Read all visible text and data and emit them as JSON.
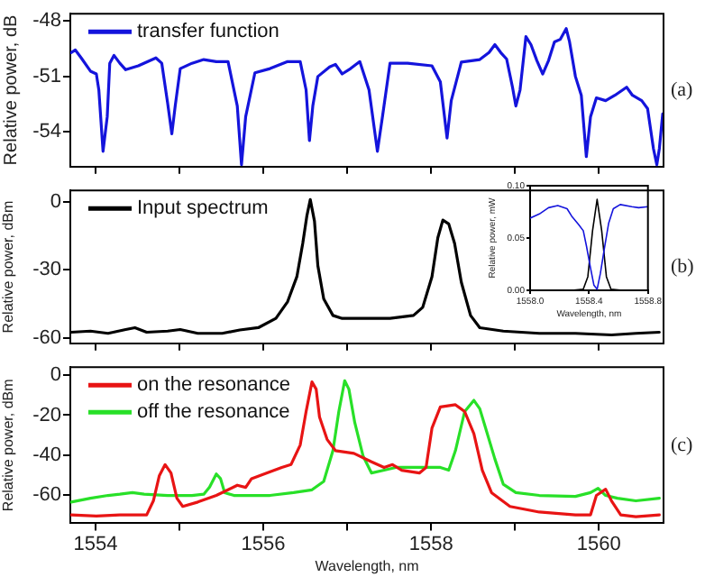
{
  "chart_data": [
    {
      "type": "line",
      "ylabel": "Relative power, dB",
      "annotations": [
        "(a)"
      ],
      "xlim": [
        1553.7,
        1560.77
      ],
      "ylim": [
        -55.9,
        -47.6
      ],
      "yticks": [
        -54,
        -51,
        -48
      ],
      "xticks": [
        1554,
        {
          "value": 1555,
          "label": null
        },
        1556,
        {
          "value": 1557,
          "label": null
        },
        1558,
        {
          "value": 1559,
          "label": null
        },
        1560
      ],
      "tick_labels": "y",
      "grid": false,
      "legend": "top left",
      "marker": "none",
      "line_style": "solid",
      "series": [
        {
          "name": "transfer function",
          "color": "#1414dc",
          "x": [
            1553.71,
            1553.76,
            1553.83,
            1553.94,
            1554.01,
            1554.04,
            1554.09,
            1554.14,
            1554.17,
            1554.22,
            1554.29,
            1554.36,
            1554.51,
            1554.72,
            1554.79,
            1554.86,
            1554.91,
            1554.95,
            1555.01,
            1555.15,
            1555.29,
            1555.44,
            1555.58,
            1555.69,
            1555.74,
            1555.79,
            1555.9,
            1556.08,
            1556.29,
            1556.44,
            1556.51,
            1556.55,
            1556.59,
            1556.65,
            1556.79,
            1556.86,
            1556.94,
            1557.04,
            1557.15,
            1557.26,
            1557.36,
            1557.42,
            1557.51,
            1557.72,
            1558.01,
            1558.11,
            1558.19,
            1558.24,
            1558.36,
            1558.58,
            1558.69,
            1558.76,
            1558.83,
            1558.9,
            1558.97,
            1559.01,
            1559.06,
            1559.13,
            1559.19,
            1559.26,
            1559.33,
            1559.4,
            1559.47,
            1559.54,
            1559.61,
            1559.65,
            1559.72,
            1559.79,
            1559.85,
            1559.9,
            1559.97,
            1560.08,
            1560.19,
            1560.33,
            1560.4,
            1560.51,
            1560.58,
            1560.65,
            1560.69,
            1560.72,
            1560.76
          ],
          "values": [
            -49.71,
            -49.57,
            -50.0,
            -50.72,
            -50.87,
            -51.74,
            -55.07,
            -53.19,
            -50.29,
            -49.86,
            -50.29,
            -50.64,
            -50.43,
            -50.0,
            -50.29,
            -52.46,
            -54.12,
            -52.61,
            -50.58,
            -50.29,
            -50.09,
            -50.2,
            -50.2,
            -52.61,
            -55.8,
            -53.19,
            -50.81,
            -50.58,
            -50.2,
            -50.2,
            -51.74,
            -54.49,
            -52.61,
            -51.01,
            -50.49,
            -50.35,
            -50.87,
            -50.58,
            -50.2,
            -51.74,
            -55.07,
            -53.19,
            -50.29,
            -50.29,
            -50.43,
            -51.3,
            -54.35,
            -52.32,
            -50.23,
            -50.09,
            -49.71,
            -49.28,
            -49.71,
            -50.06,
            -51.59,
            -52.61,
            -51.74,
            -48.84,
            -49.28,
            -50.14,
            -50.87,
            -50.14,
            -49.13,
            -48.99,
            -48.41,
            -49.13,
            -51.01,
            -52.03,
            -55.36,
            -53.19,
            -52.17,
            -52.32,
            -52.03,
            -51.59,
            -52.03,
            -52.32,
            -52.75,
            -54.93,
            -55.8,
            -54.93,
            -53.04
          ]
        }
      ]
    },
    {
      "type": "line",
      "ylabel": "Relative power, dBm",
      "annotations": [
        "(b)"
      ],
      "xlim": [
        1553.7,
        1560.77
      ],
      "ylim": [
        -62.5,
        5
      ],
      "yticks": [
        -60,
        -30,
        0
      ],
      "xticks": [
        1554,
        {
          "value": 1555,
          "label": null
        },
        1556,
        {
          "value": 1557,
          "label": null
        },
        1558,
        {
          "value": 1559,
          "label": null
        },
        1560
      ],
      "tick_labels": "y",
      "grid": false,
      "legend": "top left",
      "marker": "none",
      "line_style": "solid",
      "series": [
        {
          "name": "Input spectrum",
          "color": "#000000",
          "x": [
            1553.71,
            1553.94,
            1554.15,
            1554.36,
            1554.47,
            1554.61,
            1554.86,
            1555.01,
            1555.22,
            1555.51,
            1555.72,
            1555.94,
            1556.15,
            1556.29,
            1556.4,
            1556.47,
            1556.52,
            1556.56,
            1556.61,
            1556.65,
            1556.72,
            1556.83,
            1556.94,
            1557.15,
            1557.51,
            1557.79,
            1557.9,
            1558.01,
            1558.08,
            1558.14,
            1558.21,
            1558.28,
            1558.36,
            1558.47,
            1558.58,
            1558.86,
            1559.29,
            1559.72,
            1560.15,
            1560.44,
            1560.72
          ],
          "values": [
            -57.6,
            -57.1,
            -58.1,
            -56.4,
            -55.6,
            -57.6,
            -57.1,
            -56.4,
            -58.1,
            -58.1,
            -56.6,
            -55.6,
            -51.5,
            -44.1,
            -33.1,
            -18.4,
            -6.1,
            1.0,
            -8.6,
            -28.2,
            -42.9,
            -50.2,
            -51.5,
            -51.5,
            -51.5,
            -50.2,
            -46.6,
            -33.1,
            -15.9,
            -8.1,
            -9.8,
            -18.4,
            -35.5,
            -50.2,
            -55.6,
            -57.1,
            -58.1,
            -58.1,
            -58.8,
            -58.1,
            -57.6
          ]
        }
      ]
    },
    {
      "type": "line",
      "ylabel": "Relative power, mW",
      "xlabel": "Wavelength, nm",
      "xlim": [
        1558.0,
        1558.8
      ],
      "ylim": [
        0,
        0.1
      ],
      "xticks": [
        {
          "value": 1558.0,
          "label": "1558.0"
        },
        {
          "value": 1558.4,
          "label": "1558.4"
        },
        {
          "value": 1558.8,
          "label": "1558.8"
        }
      ],
      "yticks": [
        {
          "value": 0,
          "label": "0.00"
        },
        {
          "value": 0.05,
          "label": "0.05"
        },
        {
          "value": 0.1,
          "label": "0.10"
        }
      ],
      "grid": false,
      "marker": "none",
      "line_style": "solid",
      "series": [
        {
          "color": "#1414dc",
          "x": [
            1558.0,
            1558.063,
            1558.125,
            1558.188,
            1558.251,
            1558.282,
            1558.329,
            1558.361,
            1558.383,
            1558.408,
            1558.433,
            1558.455,
            1558.477,
            1558.502,
            1558.533,
            1558.565,
            1558.612,
            1558.69,
            1558.737,
            1558.8
          ],
          "values": [
            0.069,
            0.073,
            0.079,
            0.081,
            0.078,
            0.071,
            0.063,
            0.057,
            0.042,
            0.023,
            0.005,
            0.001,
            0.016,
            0.038,
            0.064,
            0.078,
            0.082,
            0.08,
            0.079,
            0.08
          ]
        },
        {
          "color": "#000000",
          "x": [
            1558.282,
            1558.361,
            1558.392,
            1558.424,
            1558.455,
            1558.486,
            1558.518,
            1558.549,
            1558.627
          ],
          "values": [
            0,
            0.001,
            0.013,
            0.057,
            0.087,
            0.057,
            0.013,
            0.001,
            0
          ]
        }
      ]
    },
    {
      "type": "line",
      "ylabel": "Relative power, dBm",
      "xlabel": "Wavelength, nm",
      "annotations": [
        "(c)"
      ],
      "xlim": [
        1553.7,
        1560.77
      ],
      "ylim": [
        -74,
        4
      ],
      "yticks": [
        -60,
        -40,
        -20,
        0
      ],
      "xticks": [
        1554,
        {
          "value": 1555,
          "label": null
        },
        1556,
        {
          "value": 1557,
          "label": null
        },
        1558,
        {
          "value": 1559,
          "label": null
        },
        1560
      ],
      "grid": false,
      "legend": "top left",
      "marker": "none",
      "line_style": "solid",
      "series": [
        {
          "name": "on the resonance",
          "color": "#e81414",
          "x": [
            1553.71,
            1554.01,
            1554.29,
            1554.61,
            1554.69,
            1554.76,
            1554.83,
            1554.9,
            1554.97,
            1555.04,
            1555.22,
            1555.44,
            1555.58,
            1555.69,
            1555.79,
            1555.86,
            1556.01,
            1556.22,
            1556.33,
            1556.44,
            1556.51,
            1556.58,
            1556.63,
            1556.67,
            1556.76,
            1556.86,
            1557.08,
            1557.29,
            1557.44,
            1557.54,
            1557.65,
            1557.86,
            1557.94,
            1558.01,
            1558.11,
            1558.29,
            1558.4,
            1558.51,
            1558.61,
            1558.72,
            1558.94,
            1559.29,
            1559.72,
            1559.9,
            1559.97,
            1560.08,
            1560.15,
            1560.26,
            1560.44,
            1560.72
          ],
          "values": [
            -69.8,
            -70.4,
            -69.8,
            -69.8,
            -62.8,
            -50.3,
            -44.7,
            -48.9,
            -61.5,
            -65.6,
            -63.4,
            -60.1,
            -57.3,
            -55.0,
            -56.1,
            -51.7,
            -49.4,
            -46.1,
            -44.7,
            -34.9,
            -18.2,
            -3.4,
            -7.0,
            -20.9,
            -32.1,
            -37.7,
            -39.1,
            -43.3,
            -46.1,
            -44.7,
            -47.5,
            -48.9,
            -46.1,
            -26.5,
            -15.9,
            -14.8,
            -18.2,
            -29.3,
            -47.5,
            -58.7,
            -65.6,
            -68.4,
            -69.8,
            -69.8,
            -60.1,
            -57.0,
            -62.8,
            -69.8,
            -70.7,
            -69.8
          ]
        },
        {
          "name": "off the resonance",
          "color": "#28e028",
          "x": [
            1553.71,
            1553.94,
            1554.15,
            1554.29,
            1554.44,
            1554.58,
            1554.86,
            1555.15,
            1555.29,
            1555.36,
            1555.44,
            1555.49,
            1555.54,
            1555.65,
            1556.08,
            1556.36,
            1556.58,
            1556.72,
            1556.83,
            1556.9,
            1556.97,
            1557.02,
            1557.09,
            1557.19,
            1557.29,
            1557.44,
            1557.58,
            1557.86,
            1558.11,
            1558.21,
            1558.29,
            1558.4,
            1558.51,
            1558.58,
            1558.65,
            1558.76,
            1558.86,
            1559.01,
            1559.29,
            1559.72,
            1559.9,
            1559.99,
            1560.08,
            1560.22,
            1560.44,
            1560.72
          ],
          "values": [
            -63.4,
            -61.5,
            -60.1,
            -59.5,
            -58.7,
            -59.5,
            -60.1,
            -60.1,
            -59.5,
            -55.9,
            -49.4,
            -51.7,
            -58.7,
            -60.1,
            -60.1,
            -58.7,
            -57.3,
            -53.1,
            -37.7,
            -18.2,
            -2.8,
            -7.0,
            -23.7,
            -40.5,
            -48.9,
            -47.5,
            -46.1,
            -46.1,
            -46.1,
            -47.5,
            -37.7,
            -18.2,
            -12.6,
            -16.8,
            -26.5,
            -41.9,
            -54.5,
            -58.7,
            -60.1,
            -60.6,
            -58.7,
            -56.5,
            -60.1,
            -61.5,
            -62.8,
            -61.5
          ]
        }
      ]
    }
  ]
}
